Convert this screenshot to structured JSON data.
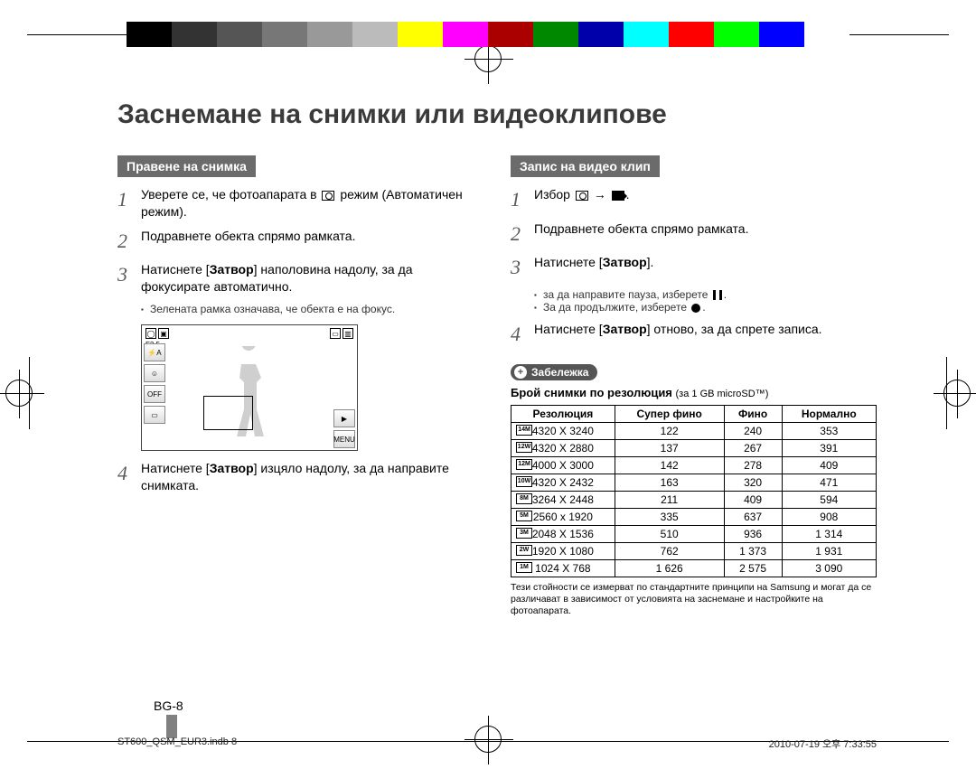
{
  "colorbar": [
    "#000000",
    "#333333",
    "#555555",
    "#777777",
    "#999999",
    "#bbbbbb",
    "#ffff00",
    "#ff00ff",
    "#aa0000",
    "#008800",
    "#0000aa",
    "#00ffff",
    "#ff0000",
    "#00ff00",
    "#0000ff",
    "#ffffff"
  ],
  "page_title": "Заснемане на снимки или видеоклипове",
  "left": {
    "header": "Правене на снимка",
    "step1": "Уверете се, че фотоапарата в  режим (Автоматичен режим).",
    "step1_icon_alt": "camera-mode",
    "step2": "Подравнете обекта спрямо рамката.",
    "step3": "Натиснете [Затвор] наполовина надолу, за да фокусирате автоматично.",
    "step3_sub": "Зелената рамка означава, че обекта е на фокус.",
    "preview": {
      "aperture": "F3.5",
      "shutter": "1/45s",
      "menu_label": "MENU"
    },
    "step4": "Натиснете [Затвор] изцяло надолу, за да направите снимката."
  },
  "right": {
    "header": "Запис на видео клип",
    "step1": "Избор  →  .",
    "step2": "Подравнете обекта спрямо рамката.",
    "step3": "Натиснете [Затвор].",
    "step3_sub1": "за да направите пауза, изберете  .",
    "step3_sub2": "За да продължите, изберете  .",
    "step4": "Натиснете [Затвор] отново, за да спрете записа."
  },
  "note": {
    "badge": "Забележка",
    "title_strong": "Брой снимки по резолюция",
    "title_small": "(за 1 GB microSD™)",
    "columns": [
      "Резолюция",
      "Супер фино",
      "Фино",
      "Нормално"
    ],
    "rows": [
      {
        "ico": "14M",
        "res": "4320 X 3240",
        "sf": "122",
        "f": "240",
        "n": "353"
      },
      {
        "ico": "12W",
        "res": "4320 X 2880",
        "sf": "137",
        "f": "267",
        "n": "391"
      },
      {
        "ico": "12M",
        "res": "4000 X 3000",
        "sf": "142",
        "f": "278",
        "n": "409"
      },
      {
        "ico": "10W",
        "res": "4320 X 2432",
        "sf": "163",
        "f": "320",
        "n": "471"
      },
      {
        "ico": "8M",
        "res": "3264 X 2448",
        "sf": "211",
        "f": "409",
        "n": "594"
      },
      {
        "ico": "5M",
        "res": "2560 x 1920",
        "sf": "335",
        "f": "637",
        "n": "908"
      },
      {
        "ico": "3M",
        "res": "2048 X 1536",
        "sf": "510",
        "f": "936",
        "n": "1 314"
      },
      {
        "ico": "2W",
        "res": "1920 X 1080",
        "sf": "762",
        "f": "1 373",
        "n": "1 931"
      },
      {
        "ico": "1M",
        "res": "1024 X 768",
        "sf": "1 626",
        "f": "2 575",
        "n": "3 090"
      }
    ],
    "footnote": "Тези стойности се измерват по стандартните принципи на Samsung и могат да се различават в зависимост от условията на заснемане и настройките на фотоапарата."
  },
  "page_number": "BG-8",
  "footer_left": "ST600_QSM_EUR3.indb   8",
  "footer_right": "2010-07-19   오후 7:33:55"
}
